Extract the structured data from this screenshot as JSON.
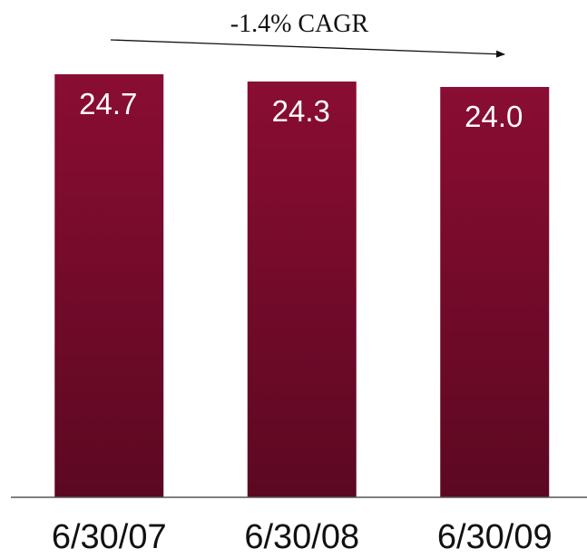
{
  "annotation": {
    "cagr_label": "-1.4% CAGR"
  },
  "colors": {
    "bar_top": "#8a0d33",
    "bar_bottom": "#5c0822",
    "baseline": "#555555",
    "arrow": "#111111",
    "value_text": "#ffffff",
    "axis_text": "#111111"
  },
  "chart_data": {
    "type": "bar",
    "categories": [
      "6/30/07",
      "6/30/08",
      "6/30/09"
    ],
    "values": [
      24.7,
      24.3,
      24.0
    ],
    "value_labels": [
      "24.7",
      "24.3",
      "24.0"
    ],
    "title": "",
    "xlabel": "",
    "ylabel": "",
    "grid": false,
    "legend": "none"
  }
}
